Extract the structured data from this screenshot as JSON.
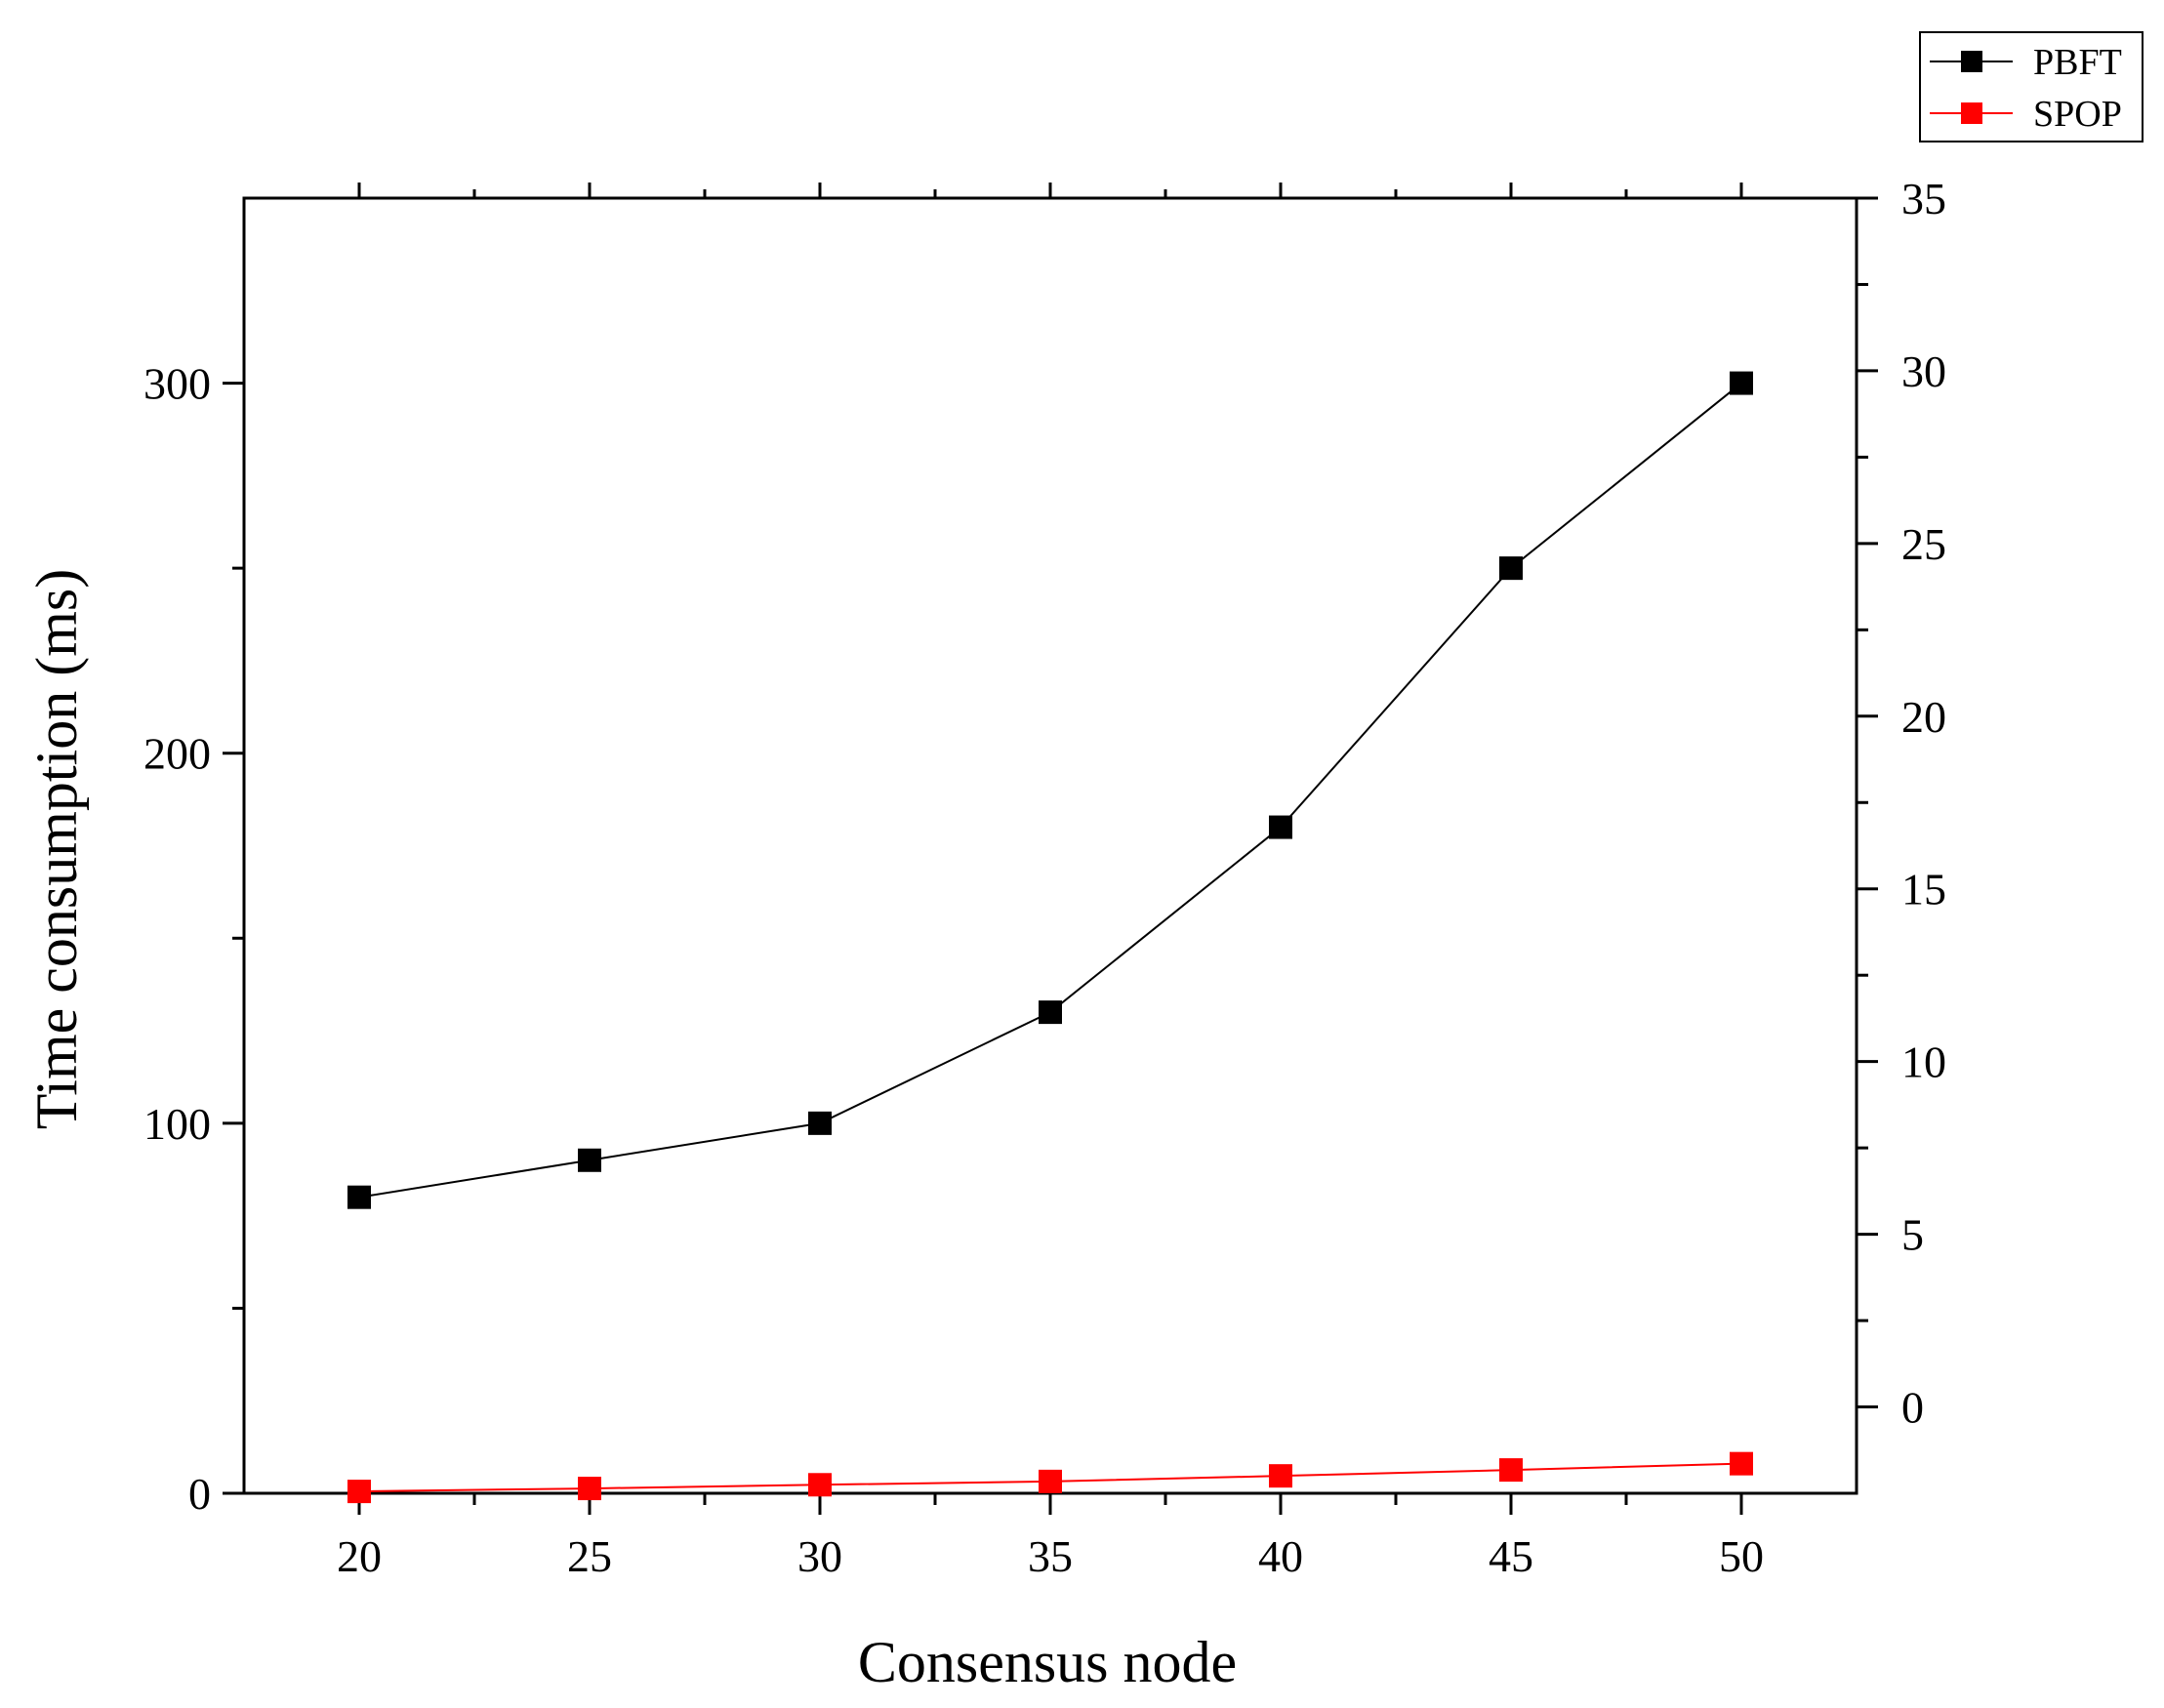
{
  "chart_data": {
    "type": "line",
    "title": "",
    "xlabel": "Consensus node",
    "ylabel": "Time consumption (ms)",
    "x": [
      20,
      25,
      30,
      35,
      40,
      45,
      50
    ],
    "xlim": [
      17.5,
      52.5
    ],
    "ylim": [
      0,
      350
    ],
    "y2lim": [
      -2.5,
      35
    ],
    "x_ticks": [
      "20",
      "25",
      "30",
      "35",
      "40",
      "45",
      "50"
    ],
    "y_ticks": [
      "0",
      "100",
      "200",
      "300"
    ],
    "y2_ticks": [
      "0",
      "5",
      "10",
      "15",
      "20",
      "25",
      "30",
      "35"
    ],
    "grid": false,
    "legend_position": "top-right, outside plot",
    "series": [
      {
        "name": "PBFT",
        "color": "#000000",
        "marker": "square",
        "axis": "left",
        "values": [
          80,
          90,
          100,
          130,
          180,
          250,
          300
        ]
      },
      {
        "name": "SPOP",
        "color": "#ff0000",
        "marker": "square",
        "axis": "left",
        "values": [
          0.5,
          1.3,
          2.3,
          3.2,
          4.7,
          6.3,
          8
        ]
      }
    ]
  }
}
